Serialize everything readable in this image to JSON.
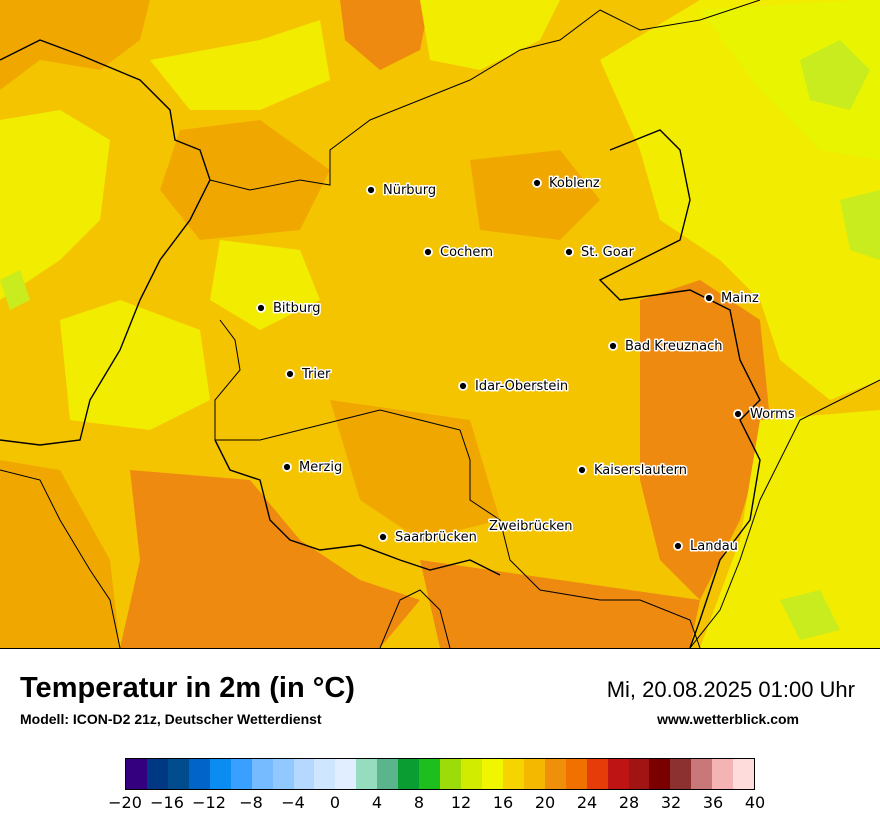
{
  "map": {
    "cities": [
      {
        "name": "Nürburg"
      },
      {
        "name": "Koblenz"
      },
      {
        "name": "Cochem"
      },
      {
        "name": "St. Goar"
      },
      {
        "name": "Bitburg"
      },
      {
        "name": "Mainz"
      },
      {
        "name": "Bad Kreuznach"
      },
      {
        "name": "Trier"
      },
      {
        "name": "Idar-Oberstein"
      },
      {
        "name": "Worms"
      },
      {
        "name": "Merzig"
      },
      {
        "name": "Kaiserslautern"
      },
      {
        "name": "Saarbrücken"
      },
      {
        "name": "Zweibrücken"
      },
      {
        "name": "Landau"
      }
    ],
    "colors": {
      "base": "#f5c400",
      "warm": "#f0a800",
      "hot": "#ee8a10",
      "cool": "#f2ec00",
      "cooler": "#e8f400",
      "green": "#c8ec1e"
    }
  },
  "footer": {
    "title": "Temperatur in 2m (in °C)",
    "model": "Modell: ICON-D2 21z, Deutscher Wetterdienst",
    "datetime": "Mi, 20.08.2025 01:00 Uhr",
    "website": "www.wetterblick.com"
  },
  "legend": {
    "colors": [
      "#35007f",
      "#003883",
      "#004c8c",
      "#0064c8",
      "#0a8cf0",
      "#3aa0ff",
      "#76baff",
      "#90c8ff",
      "#b4d8ff",
      "#cfe6ff",
      "#e0eeff",
      "#96dcbe",
      "#5ab48c",
      "#0a9e32",
      "#1ebe1e",
      "#9cdc0a",
      "#d2ec00",
      "#f0f500",
      "#f5d400",
      "#f5b800",
      "#f0900a",
      "#f07000",
      "#e63c0a",
      "#be1414",
      "#a01414",
      "#7a0000",
      "#8c3030",
      "#c87878",
      "#f4b4b4",
      "#ffdcdc"
    ],
    "ticks": [
      "−20",
      "−16",
      "−12",
      "−8",
      "−4",
      "0",
      "4",
      "8",
      "12",
      "16",
      "20",
      "24",
      "28",
      "32",
      "36",
      "40"
    ]
  }
}
